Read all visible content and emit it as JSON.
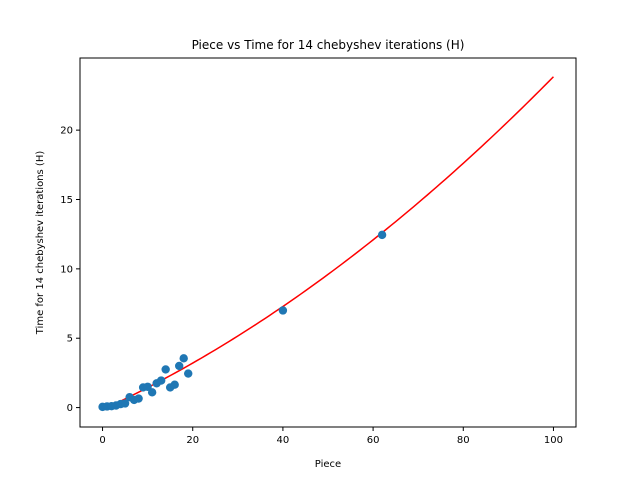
{
  "chart_data": {
    "type": "scatter",
    "title": "Piece vs Time for 14 chebyshev iterations (H)",
    "xlabel": "Piece",
    "ylabel": "Time for 14 chebyshev iterations (H)",
    "xlim": [
      -5,
      105
    ],
    "ylim": [
      -1.4,
      25.2
    ],
    "xticks": [
      0,
      20,
      40,
      60,
      80,
      100
    ],
    "yticks": [
      0,
      5,
      10,
      15,
      20
    ],
    "grid": false,
    "series": [
      {
        "kind": "scatter",
        "color": "#1f77b4",
        "points": [
          [
            0,
            0.05
          ],
          [
            1,
            0.08
          ],
          [
            2,
            0.1
          ],
          [
            3,
            0.15
          ],
          [
            4,
            0.25
          ],
          [
            5,
            0.3
          ],
          [
            6,
            0.75
          ],
          [
            7,
            0.55
          ],
          [
            8,
            0.65
          ],
          [
            9,
            1.45
          ],
          [
            10,
            1.5
          ],
          [
            11,
            1.1
          ],
          [
            12,
            1.75
          ],
          [
            13,
            1.95
          ],
          [
            14,
            2.75
          ],
          [
            15,
            1.45
          ],
          [
            16,
            1.65
          ],
          [
            17,
            3.0
          ],
          [
            18,
            3.55
          ],
          [
            19,
            2.45
          ],
          [
            40,
            7.0
          ],
          [
            62,
            12.45
          ]
        ]
      },
      {
        "kind": "line",
        "color": "#ff0000",
        "fit_curve": {
          "a": 0.0009,
          "b": 0.15,
          "c": -0.15
        },
        "x_range": [
          0,
          100
        ]
      }
    ]
  }
}
